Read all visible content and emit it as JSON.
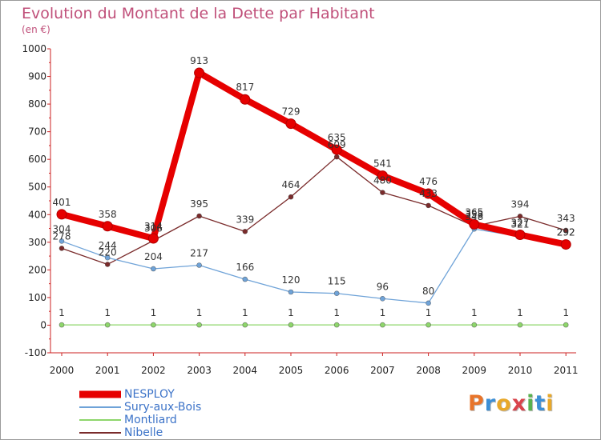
{
  "title": "Evolution du Montant de la Dette par Habitant",
  "subtitle": "(en €)",
  "logo": "Proxiti",
  "chart_data": {
    "type": "line",
    "title": "Evolution du Montant de la Dette par Habitant",
    "subtitle": "(en €)",
    "xlabel": "",
    "ylabel": "",
    "ylim": [
      -100,
      1000
    ],
    "yticks": [
      -100,
      0,
      100,
      200,
      300,
      400,
      500,
      600,
      700,
      800,
      900,
      1000
    ],
    "grid": false,
    "legend": "bottom-left",
    "categories": [
      "2000",
      "2001",
      "2002",
      "2003",
      "2004",
      "2005",
      "2006",
      "2007",
      "2008",
      "2009",
      "2010",
      "2011"
    ],
    "series": [
      {
        "name": "NESPLOY",
        "color": "#e60000",
        "values": [
          401,
          358,
          314,
          913,
          817,
          729,
          635,
          541,
          476,
          365,
          327,
          292
        ]
      },
      {
        "name": "Sury-aux-Bois",
        "color": "#6fa3d8",
        "values": [
          304,
          244,
          204,
          217,
          166,
          120,
          115,
          96,
          80,
          348,
          321,
          292
        ]
      },
      {
        "name": "Montliard",
        "color": "#8ed66b",
        "values": [
          1,
          1,
          1,
          1,
          1,
          1,
          1,
          1,
          1,
          1,
          1,
          1
        ]
      },
      {
        "name": "Nibelle",
        "color": "#7a2b2b",
        "values": [
          278,
          220,
          306,
          395,
          339,
          464,
          609,
          480,
          433,
          358,
          394,
          343
        ]
      }
    ]
  }
}
